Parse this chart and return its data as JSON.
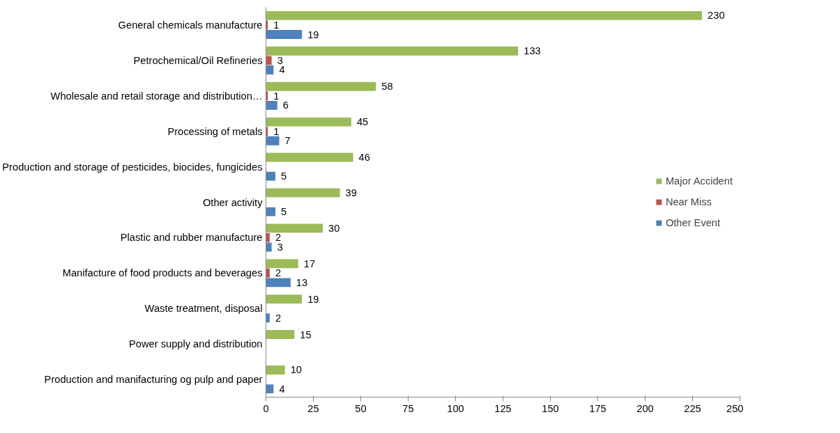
{
  "chart_data": {
    "type": "bar",
    "orientation": "horizontal",
    "categories": [
      "General chemicals manufacture",
      "Petrochemical/Oil Refineries",
      "Wholesale and retail storage and distribution…",
      "Processing of metals",
      "Production and storage of pesticides, biocides, fungicides",
      "Other activity",
      "Plastic and rubber manufacture",
      "Manifacture of food products and beverages",
      "Waste treatment, disposal",
      "Power supply and distribution",
      "Production and manifacturing og pulp and paper"
    ],
    "series": [
      {
        "name": "Major Accident",
        "color": "#9bbb59",
        "values": [
          230,
          133,
          58,
          45,
          46,
          39,
          30,
          17,
          19,
          15,
          10
        ]
      },
      {
        "name": "Near Miss",
        "color": "#c0504d",
        "values": [
          1,
          3,
          1,
          1,
          null,
          null,
          2,
          2,
          null,
          null,
          null
        ]
      },
      {
        "name": "Other Event",
        "color": "#4f81bd",
        "values": [
          19,
          4,
          6,
          7,
          5,
          5,
          3,
          13,
          2,
          null,
          4
        ]
      }
    ],
    "xlim": [
      0,
      250
    ],
    "xticks": [
      0,
      25,
      50,
      75,
      100,
      125,
      150,
      175,
      200,
      225,
      250
    ],
    "data_labels": true,
    "grid": false,
    "legend": "right"
  }
}
